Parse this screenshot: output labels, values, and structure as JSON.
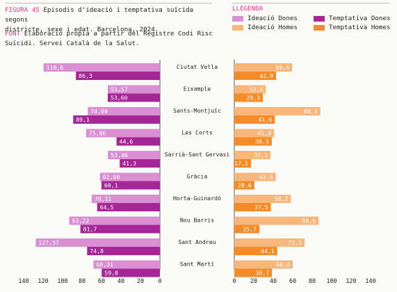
{
  "header": {
    "figure_label": "FIGURA 45",
    "title_line1": "Episodis d'ideació i temptativa suïcida segons",
    "title_line2": "districte, sexe i edat. Barcelona, 2024.",
    "source_label": "FONT",
    "source_line1": "Elaboració pròpia a partir del Registre Codi Risc",
    "source_line2": "Suïcidi. Servei Català de la Salut."
  },
  "legend": {
    "title": "LLEGENDA",
    "items": [
      {
        "label": "Ideació Dones",
        "color": "#d98fd2"
      },
      {
        "label": "Temptativa Dones",
        "color": "#a52795"
      },
      {
        "label": "Ideació Homes",
        "color": "#f8b67c"
      },
      {
        "label": "Temptativa Homes",
        "color": "#f38b28"
      }
    ]
  },
  "chart_data": {
    "type": "bar",
    "orientation": "horizontal",
    "layout": "back-to-back",
    "categories": [
      "Ciutat Vella",
      "Eixample",
      "Sants-Montjuïc",
      "Les Corts",
      "Sarrià-Sant Gervasi",
      "Gràcia",
      "Horta-Guinardó",
      "Nou Barris",
      "Sant Andreu",
      "Sant Martí"
    ],
    "series": [
      {
        "name": "Ideació Dones",
        "side": "left",
        "color": "#d98fd2",
        "values": [
          119.6,
          53.57,
          74.09,
          75.86,
          53.46,
          61.6,
          70.11,
          93.22,
          127.57,
          68.31
        ],
        "labels": [
          "119,6",
          "53,57",
          "74,09",
          "75,86",
          "53,46",
          "61,60",
          "70,11",
          "93,22",
          "127,57",
          "68,31"
        ]
      },
      {
        "name": "Temptativa Dones",
        "side": "left",
        "color": "#a52795",
        "values": [
          86.3,
          53.6,
          89.1,
          44.6,
          41.3,
          60.1,
          64.5,
          81.7,
          74.8,
          59.8
        ],
        "labels": [
          "86,3",
          "53,60",
          "89,1",
          "44,6",
          "41,3",
          "60,1",
          "64,5",
          "81,7",
          "74,8",
          "59,8"
        ]
      },
      {
        "name": "Ideació Homes",
        "side": "right",
        "color": "#f8b67c",
        "values": [
          59.4,
          32.4,
          88.3,
          41.0,
          37.1,
          42.6,
          58.2,
          86.6,
          72.2,
          60.0
        ],
        "labels": [
          "59,4",
          "32,4",
          "88,3",
          "41,0",
          "37,1",
          "42,6",
          "58,2",
          "86,6",
          "72,2",
          "60,0"
        ]
      },
      {
        "name": "Temptativa Homes",
        "side": "right",
        "color": "#f38b28",
        "values": [
          42.9,
          29.3,
          41.6,
          38.5,
          17.1,
          20.6,
          37.5,
          25.7,
          44.1,
          38.7
        ],
        "labels": [
          "42,9",
          "29,3",
          "41,6",
          "38,5",
          "17,1",
          "20,6",
          "37,5",
          "25,7",
          "44,1",
          "38,7"
        ]
      }
    ],
    "left_axis": {
      "ticks": [
        "140",
        "120",
        "100",
        "80",
        "60",
        "40",
        "20",
        "0"
      ],
      "range": [
        0,
        140
      ],
      "reversed": true
    },
    "right_axis": {
      "ticks": [
        "0",
        "20",
        "40",
        "60",
        "80",
        "100",
        "120",
        "140"
      ],
      "range": [
        0,
        140
      ]
    }
  }
}
